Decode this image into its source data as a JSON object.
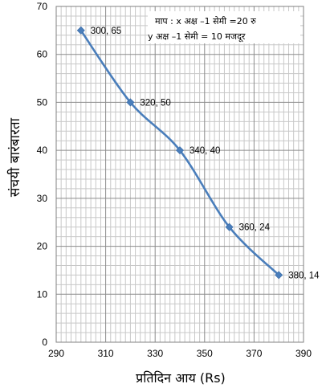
{
  "chart_data": {
    "type": "line",
    "title": "",
    "xlabel": "प्रतिदिन आय (Rs)",
    "ylabel": "संचयी बारंबारता",
    "xlim": [
      290,
      390
    ],
    "ylim": [
      0,
      70
    ],
    "x_ticks": [
      "290",
      "310",
      "330",
      "350",
      "370",
      "390"
    ],
    "y_ticks": [
      "0",
      "10",
      "20",
      "30",
      "40",
      "50",
      "60",
      "70"
    ],
    "grid": true,
    "legend": "none",
    "series": [
      {
        "color": "#4a7ebb",
        "points": [
          {
            "x": 300,
            "y": 65,
            "label": "300, 65"
          },
          {
            "x": 320,
            "y": 50,
            "label": "320, 50"
          },
          {
            "x": 340,
            "y": 40,
            "label": "340, 40"
          },
          {
            "x": 360,
            "y": 24,
            "label": "360, 24"
          },
          {
            "x": 380,
            "y": 14,
            "label": "380, 14"
          }
        ]
      }
    ],
    "annotation": {
      "line1": "माप : x अक्ष  –1  सेमी  =20  रु",
      "line2": "y अक्ष  –1  सेमी  =  10  मजदूर"
    }
  }
}
